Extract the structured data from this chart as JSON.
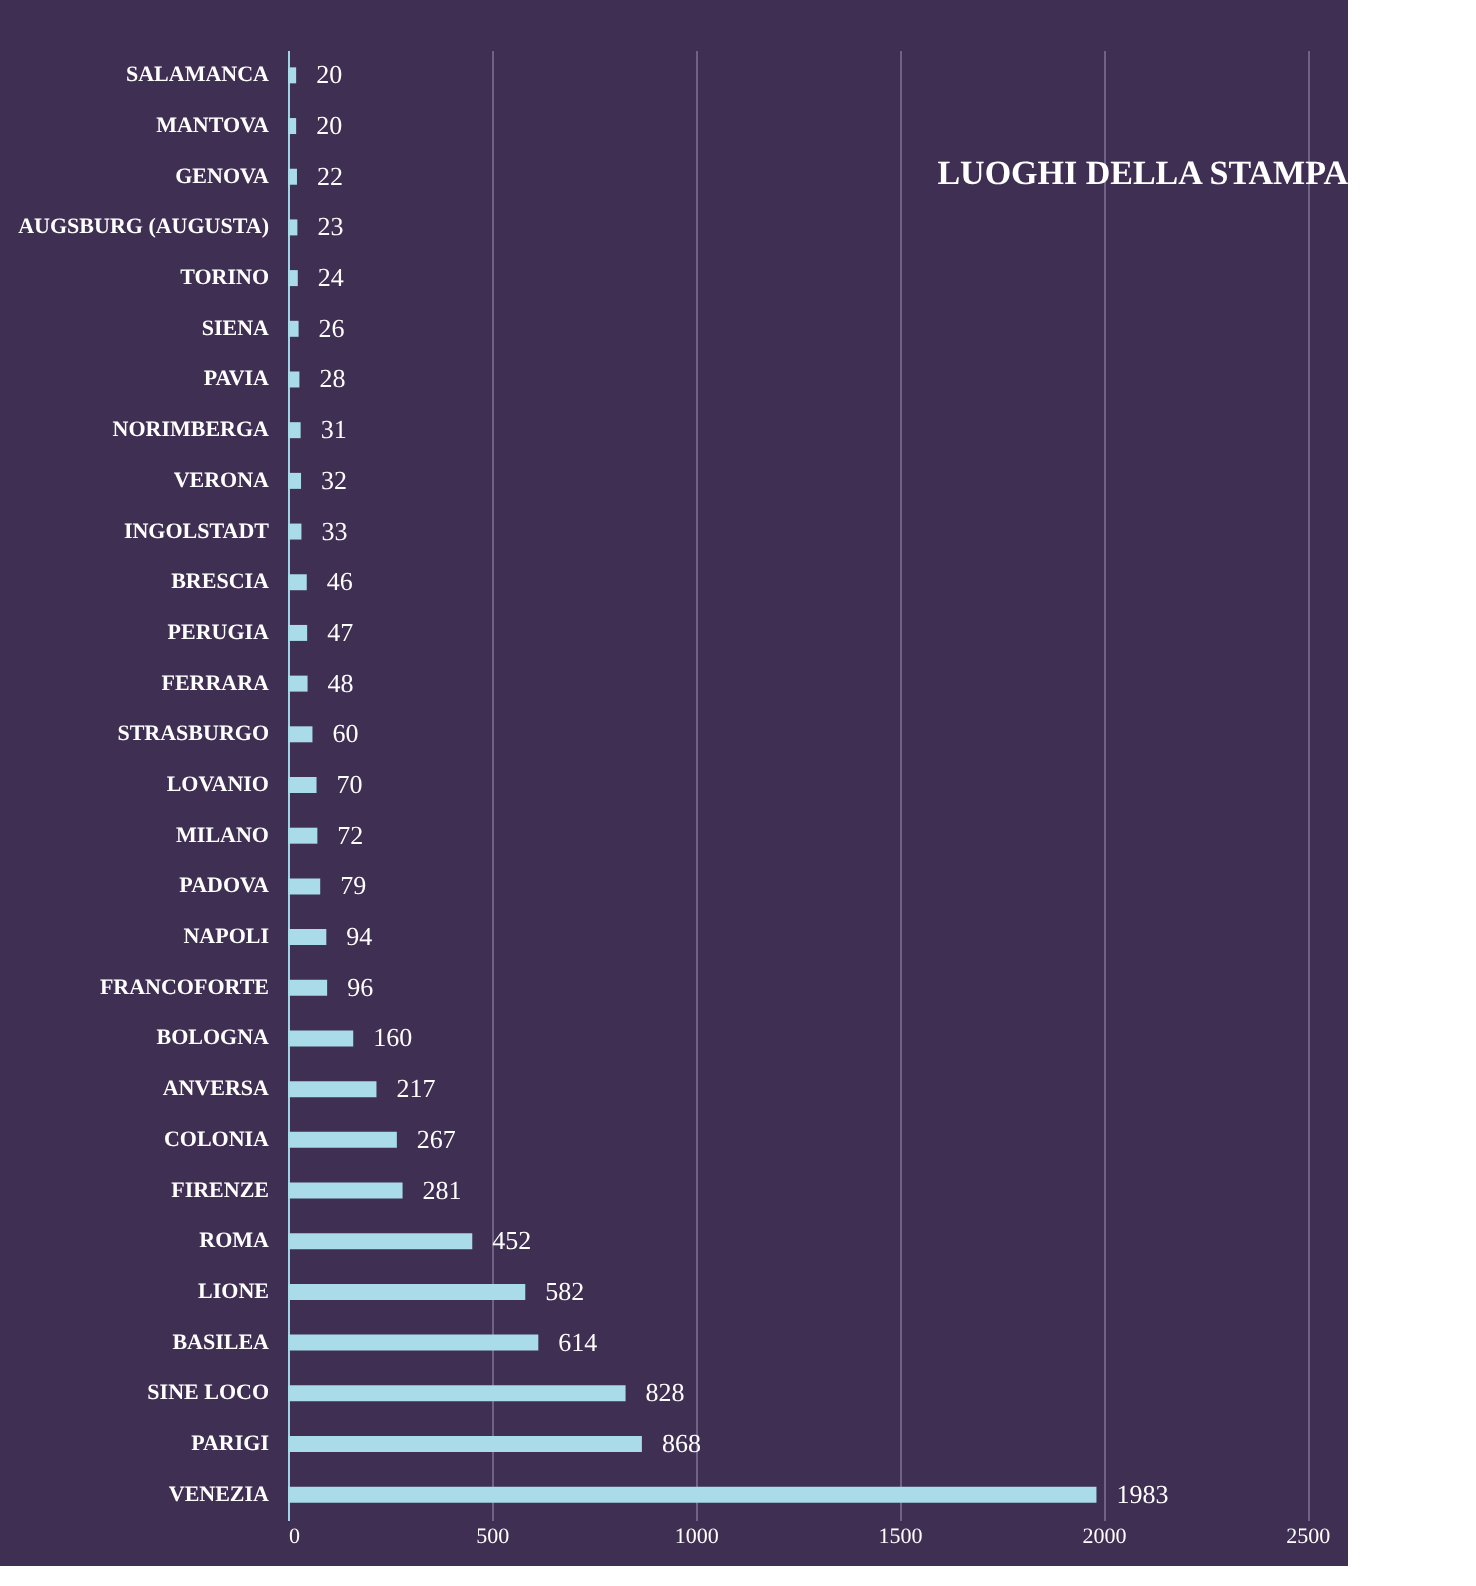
{
  "chart_data": {
    "type": "bar",
    "orientation": "horizontal",
    "title": "LUOGHI DELLA STAMPA",
    "categories": [
      "SALAMANCA",
      "MANTOVA",
      "GENOVA",
      "AUGSBURG (AUGUSTA)",
      "TORINO",
      "SIENA",
      "PAVIA",
      "NORIMBERGA",
      "VERONA",
      "INGOLSTADT",
      "BRESCIA",
      "PERUGIA",
      "FERRARA",
      "STRASBURGO",
      "LOVANIO",
      "MILANO",
      "PADOVA",
      "NAPOLI",
      "FRANCOFORTE",
      "BOLOGNA",
      "ANVERSA",
      "COLONIA",
      "FIRENZE",
      "ROMA",
      "LIONE",
      "BASILEA",
      "SINE LOCO",
      "PARIGI",
      "VENEZIA"
    ],
    "values": [
      20,
      20,
      22,
      23,
      24,
      26,
      28,
      31,
      32,
      33,
      46,
      47,
      48,
      60,
      70,
      72,
      79,
      94,
      96,
      160,
      217,
      267,
      281,
      452,
      582,
      614,
      828,
      868,
      1983
    ],
    "color": "#a9dbe9",
    "xlim": [
      0,
      2600
    ],
    "xticks": [
      0,
      500,
      1000,
      1500,
      2000,
      2500
    ],
    "grid": "x",
    "data_labels": true
  }
}
